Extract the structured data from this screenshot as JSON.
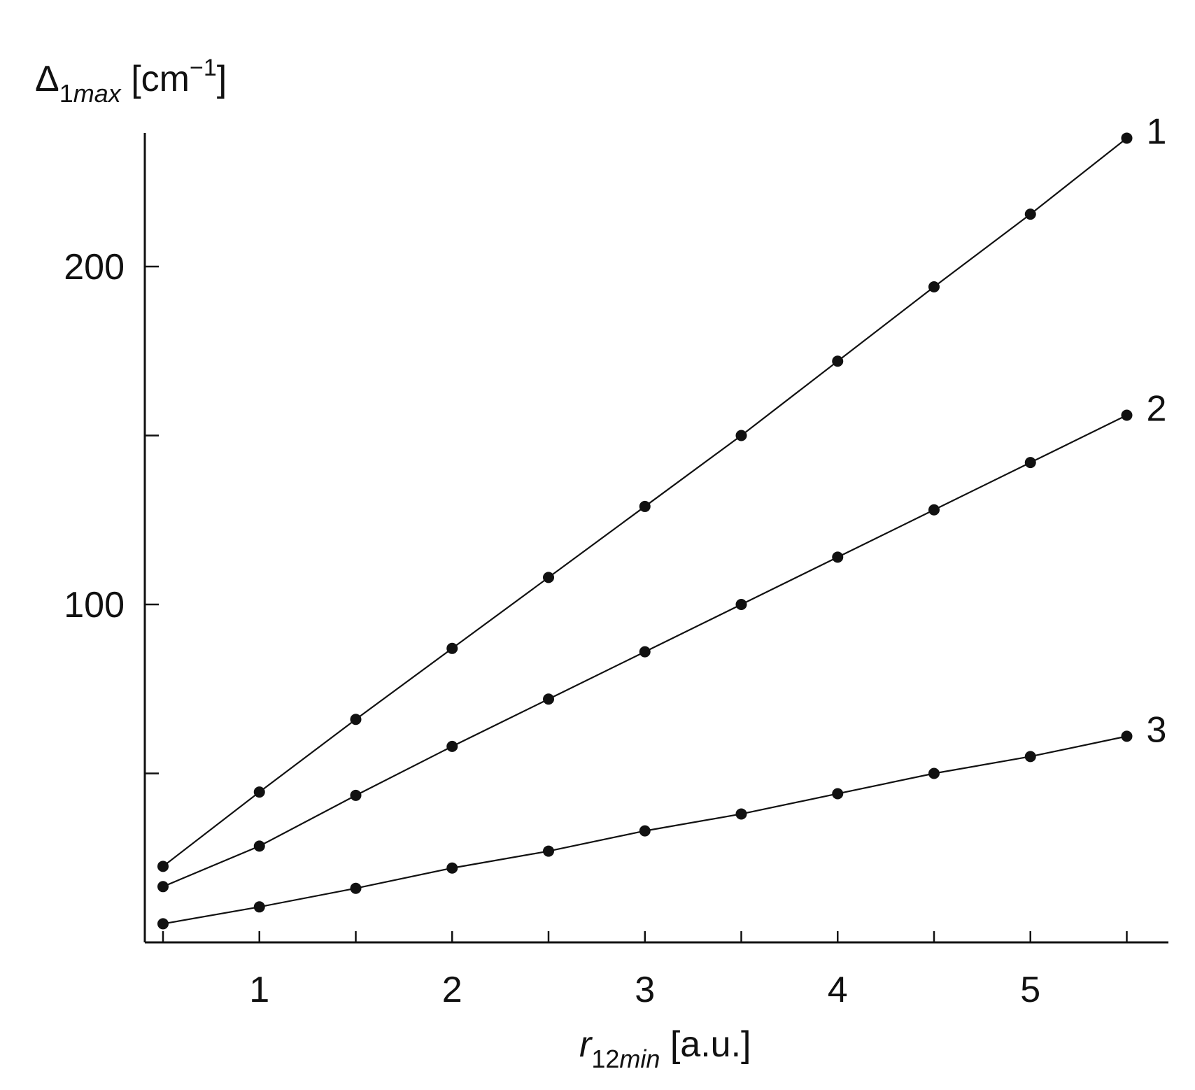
{
  "chart_data": {
    "type": "line",
    "title": "",
    "ylabel": {
      "base": "Δ",
      "subscript_num": "1",
      "subscript_ital": "max",
      "unit_pre": " [cm",
      "unit_sup": "−1",
      "unit_post": "]"
    },
    "xlabel": {
      "base": "r",
      "subscript_num": "12",
      "subscript_ital": "min",
      "unit": " [a.u.]"
    },
    "xlim": [
      0.5,
      5.85
    ],
    "ylim": [
      0,
      240
    ],
    "x_ticks": [
      0.5,
      1,
      1.5,
      2,
      2.5,
      3,
      3.5,
      4,
      4.5,
      5,
      5.5
    ],
    "x_tick_labels": [
      {
        "value": 1,
        "label": "1"
      },
      {
        "value": 2,
        "label": "2"
      },
      {
        "value": 3,
        "label": "3"
      },
      {
        "value": 4,
        "label": "4"
      },
      {
        "value": 5,
        "label": "5"
      }
    ],
    "y_ticks": [
      50,
      100,
      150,
      200
    ],
    "y_tick_labels": [
      {
        "value": 100,
        "label": "100"
      },
      {
        "value": 200,
        "label": "200"
      }
    ],
    "grid": false,
    "x": [
      0.5,
      1,
      1.5,
      2,
      2.5,
      3,
      3.5,
      4,
      4.5,
      5,
      5.5
    ],
    "series": [
      {
        "label": "1",
        "values": [
          22.5,
          44.5,
          66,
          87,
          108,
          129,
          150,
          172,
          194,
          215.5,
          238
        ]
      },
      {
        "label": "2",
        "values": [
          16.5,
          28.5,
          43.5,
          58,
          72,
          86,
          100,
          114,
          128,
          142,
          156
        ]
      },
      {
        "label": "3",
        "values": [
          5.5,
          10.5,
          16,
          22,
          27,
          33,
          38,
          44,
          50,
          55,
          61
        ]
      }
    ]
  }
}
